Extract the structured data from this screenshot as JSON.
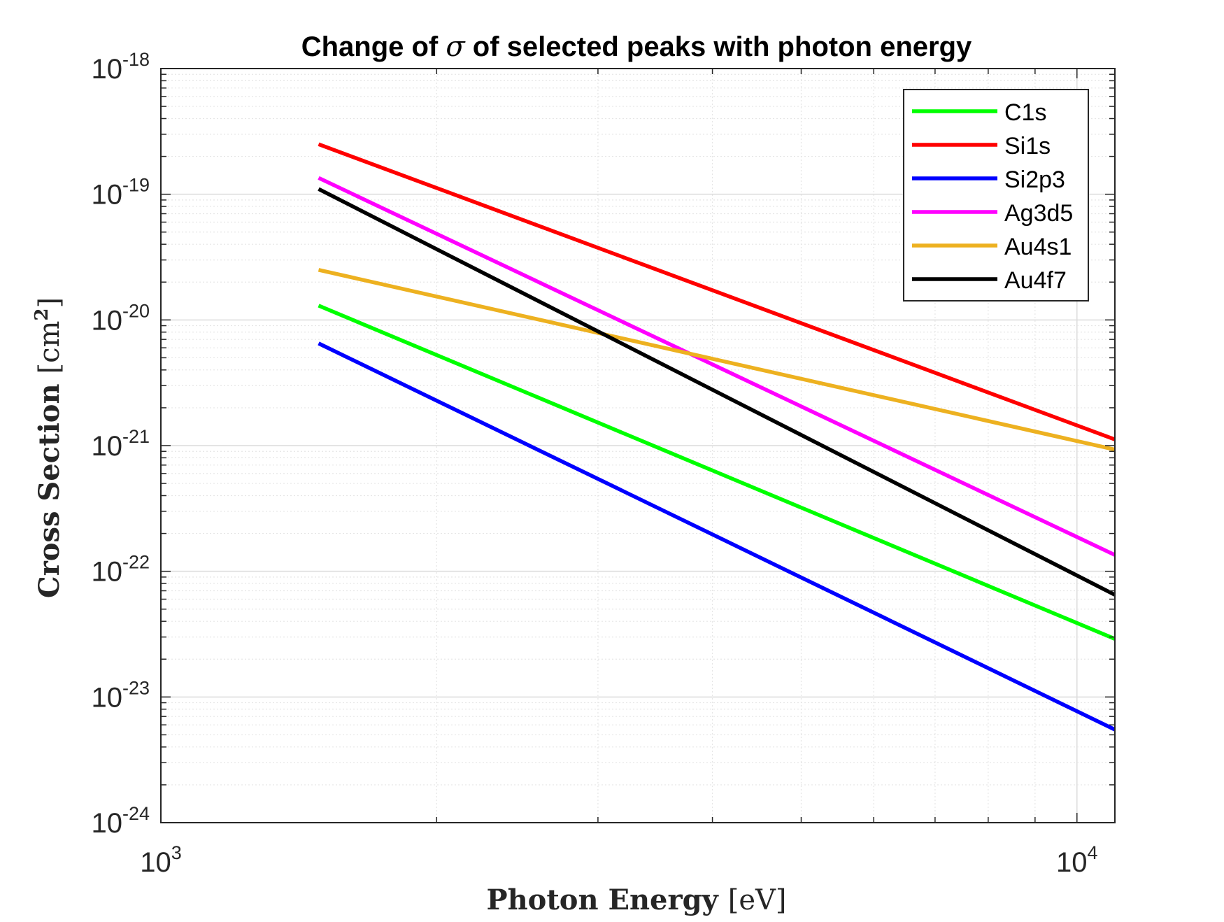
{
  "chart_data": {
    "type": "line",
    "title_prefix": "Change of ",
    "title_symbol": "σ",
    "title_suffix": " of selected peaks with photon energy",
    "xlabel_main": "Photon Energy ",
    "xlabel_unit": "[eV]",
    "ylabel_main": "Cross Section ",
    "ylabel_unit_open": "[cm",
    "ylabel_unit_sup": "2",
    "ylabel_unit_close": "]",
    "x_scale": "log",
    "y_scale": "log",
    "xlim": [
      1000,
      11000
    ],
    "ylim": [
      1e-24,
      1e-18
    ],
    "x_ticks": [
      {
        "value": 1000,
        "base": "10",
        "exp": "3"
      },
      {
        "value": 10000,
        "base": "10",
        "exp": "4"
      }
    ],
    "y_ticks": [
      {
        "value": 1e-24,
        "base": "10",
        "exp": "-24"
      },
      {
        "value": 1e-23,
        "base": "10",
        "exp": "-23"
      },
      {
        "value": 1e-22,
        "base": "10",
        "exp": "-22"
      },
      {
        "value": 1e-21,
        "base": "10",
        "exp": "-21"
      },
      {
        "value": 1e-20,
        "base": "10",
        "exp": "-20"
      },
      {
        "value": 1e-19,
        "base": "10",
        "exp": "-19"
      },
      {
        "value": 1e-18,
        "base": "10",
        "exp": "-18"
      }
    ],
    "grid": true,
    "minor_grid": true,
    "legend_position": "top-right",
    "series": [
      {
        "name": "C1s",
        "color": "#00ff00",
        "x": [
          1486.6,
          11000
        ],
        "y": [
          1.3e-20,
          2.9e-23
        ]
      },
      {
        "name": "Si1s",
        "color": "#ff0000",
        "x": [
          1486.6,
          11000
        ],
        "y": [
          2.5e-19,
          1.12e-21
        ]
      },
      {
        "name": "Si2p3",
        "color": "#0000ff",
        "x": [
          1486.6,
          11000
        ],
        "y": [
          6.5e-21,
          5.5e-24
        ]
      },
      {
        "name": "Ag3d5",
        "color": "#ff00ff",
        "x": [
          1486.6,
          11000
        ],
        "y": [
          1.35e-19,
          1.35e-22
        ]
      },
      {
        "name": "Au4s1",
        "color": "#edb120",
        "x": [
          1486.6,
          11000
        ],
        "y": [
          2.5e-20,
          9.3e-22
        ]
      },
      {
        "name": "Au4f7",
        "color": "#000000",
        "x": [
          1486.6,
          11000
        ],
        "y": [
          1.1e-19,
          6.5e-23
        ]
      }
    ]
  }
}
